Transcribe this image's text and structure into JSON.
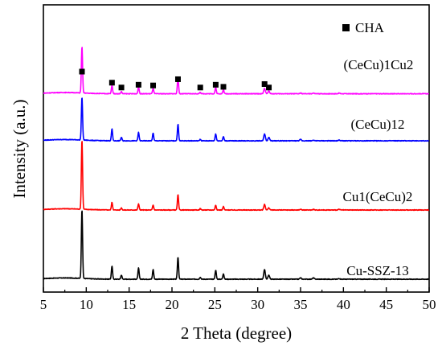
{
  "chart_data": {
    "type": "line",
    "xlabel": "2 Theta (degree)",
    "ylabel": "Intensity (a.u.)",
    "xlim": [
      5,
      50
    ],
    "xticks": [
      5,
      10,
      15,
      20,
      25,
      30,
      35,
      40,
      45,
      50
    ],
    "yticks_shown": false,
    "legend": {
      "marker": "filled-square",
      "label": "CHA",
      "placement": "top-right"
    },
    "peaks_2theta": [
      9.5,
      13.0,
      14.1,
      16.1,
      17.8,
      20.7,
      23.3,
      25.1,
      26.0,
      30.8,
      31.3,
      35.0,
      36.5,
      39.5
    ],
    "series": [
      {
        "name": "Cu-SSZ-13",
        "color": "#000000",
        "baseline": 0,
        "intensities": [
          100,
          19,
          6,
          16,
          14,
          32,
          3,
          13,
          8,
          14,
          6,
          2,
          2,
          1
        ]
      },
      {
        "name": "Cu1(CeCu)2",
        "color": "#ff0000",
        "baseline": 100,
        "intensities": [
          100,
          11,
          3,
          9,
          7,
          22,
          2,
          7,
          5,
          8,
          3,
          1,
          1,
          1
        ]
      },
      {
        "name": "(CeCu)12",
        "color": "#0000ff",
        "baseline": 200,
        "intensities": [
          62,
          17,
          5,
          12,
          11,
          24,
          2,
          10,
          6,
          10,
          5,
          2,
          1,
          1
        ]
      },
      {
        "name": "(CeCu)1Cu2",
        "color": "#ff00ff",
        "baseline": 268,
        "intensities": [
          67,
          12,
          3,
          10,
          8,
          24,
          2,
          9,
          6,
          8,
          4,
          1,
          1,
          1
        ]
      }
    ],
    "cha_markers": [
      {
        "x": 9.5,
        "level": 300
      },
      {
        "x": 13.0,
        "level": 284
      },
      {
        "x": 14.1,
        "level": 277
      },
      {
        "x": 16.1,
        "level": 281
      },
      {
        "x": 17.8,
        "level": 280
      },
      {
        "x": 20.7,
        "level": 289
      },
      {
        "x": 23.3,
        "level": 277
      },
      {
        "x": 25.1,
        "level": 281
      },
      {
        "x": 26.0,
        "level": 278
      },
      {
        "x": 30.8,
        "level": 282
      },
      {
        "x": 31.3,
        "level": 277
      }
    ]
  }
}
